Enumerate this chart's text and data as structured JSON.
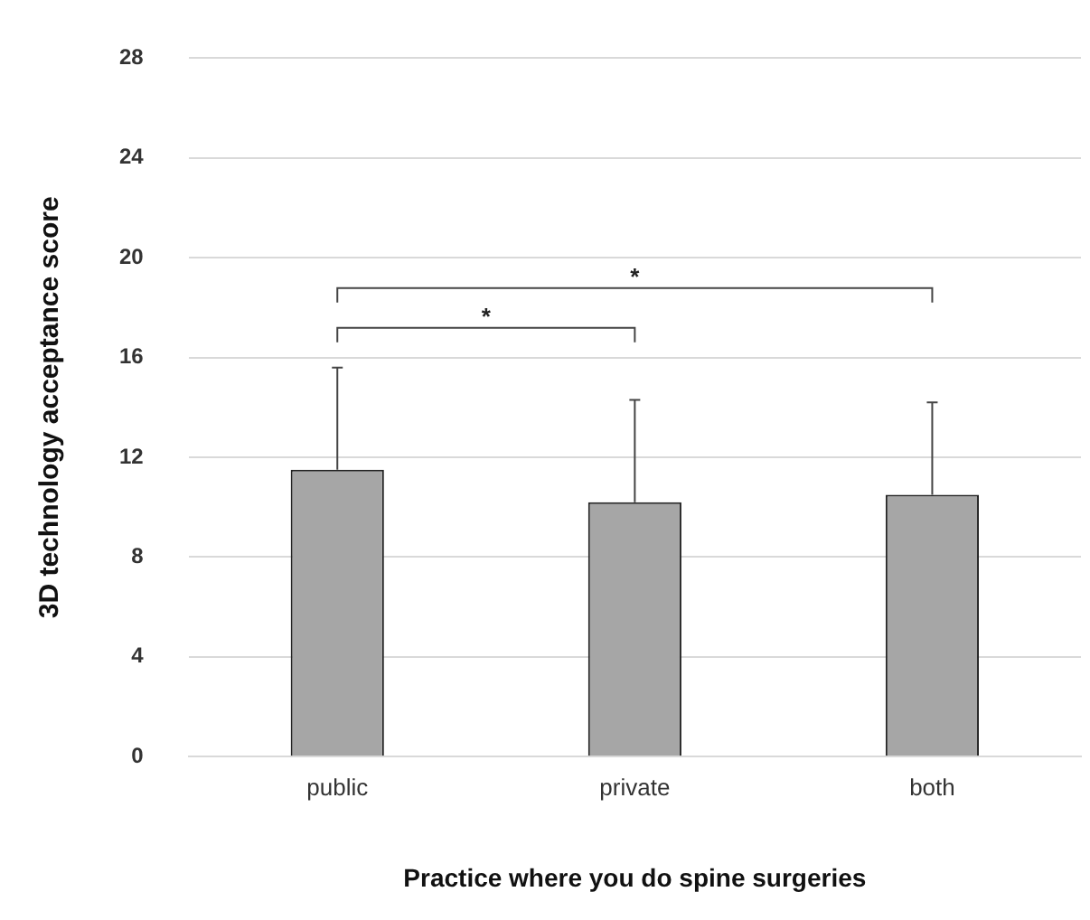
{
  "chart_data": {
    "type": "bar",
    "xlabel": "Practice where you do spine surgeries",
    "ylabel": "3D technology acceptance score",
    "categories": [
      "public",
      "private",
      "both"
    ],
    "values": [
      11.5,
      10.2,
      10.5
    ],
    "errors": [
      [
        11.5,
        15.6
      ],
      [
        10.2,
        14.3
      ],
      [
        10.5,
        14.2
      ]
    ],
    "color": "#a6a6a6",
    "ylim": [
      0,
      28
    ],
    "yticks": [
      0,
      4,
      8,
      12,
      16,
      20,
      24,
      28
    ],
    "grid": "y",
    "legend": false,
    "annotations": [
      "*",
      "*"
    ]
  }
}
